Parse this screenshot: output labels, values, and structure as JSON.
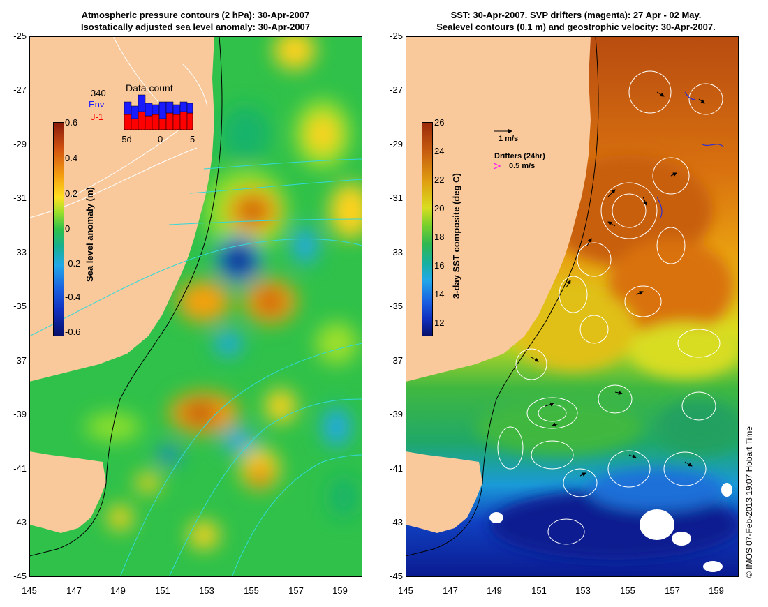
{
  "left_panel": {
    "title_line1": "Atmospheric pressure contours (2 hPa): 30-Apr-2007",
    "title_line2": "Isostatically adjusted sea level anomaly: 30-Apr-2007",
    "colorbar_label": "Sea level anomaly (m)",
    "colorbar_ticks": [
      "0.6",
      "0.4",
      "0.2",
      "0",
      "-0.2",
      "-0.4",
      "-0.6"
    ],
    "data_count": {
      "title": "Data count",
      "count": "340",
      "series1": "Env",
      "series2": "J-1",
      "series1_color": "#1a1aff",
      "series2_color": "#ff0000",
      "x_ticks": [
        "-5d",
        "0",
        "5"
      ]
    }
  },
  "right_panel": {
    "title_line1": "SST: 30-Apr-2007. SVP drifters (magenta): 27 Apr - 02 May.",
    "title_line2": "Sealevel contours (0.1 m) and geostrophic velocity: 30-Apr-2007.",
    "colorbar_label": "3-day SST composite (deg C)",
    "colorbar_ticks": [
      "26",
      "24",
      "22",
      "20",
      "18",
      "16",
      "14",
      "12"
    ],
    "velocity_key": "1 m/s",
    "drifters_label": "Drifters (24hr)",
    "drifter_speed": "0.5 m/s"
  },
  "axes": {
    "y_ticks": [
      "-25",
      "-27",
      "-29",
      "-31",
      "-33",
      "-35",
      "-37",
      "-39",
      "-41",
      "-43",
      "-45"
    ],
    "x_ticks": [
      "145",
      "147",
      "149",
      "151",
      "153",
      "155",
      "157",
      "159"
    ]
  },
  "credit": "© IMOS 07-Feb-2013 19:07 Hobart Time",
  "colors": {
    "land": "#f9c89b",
    "ocean_green": "#2fc14a",
    "warm": "#e07a10",
    "cold": "#1030c0"
  }
}
